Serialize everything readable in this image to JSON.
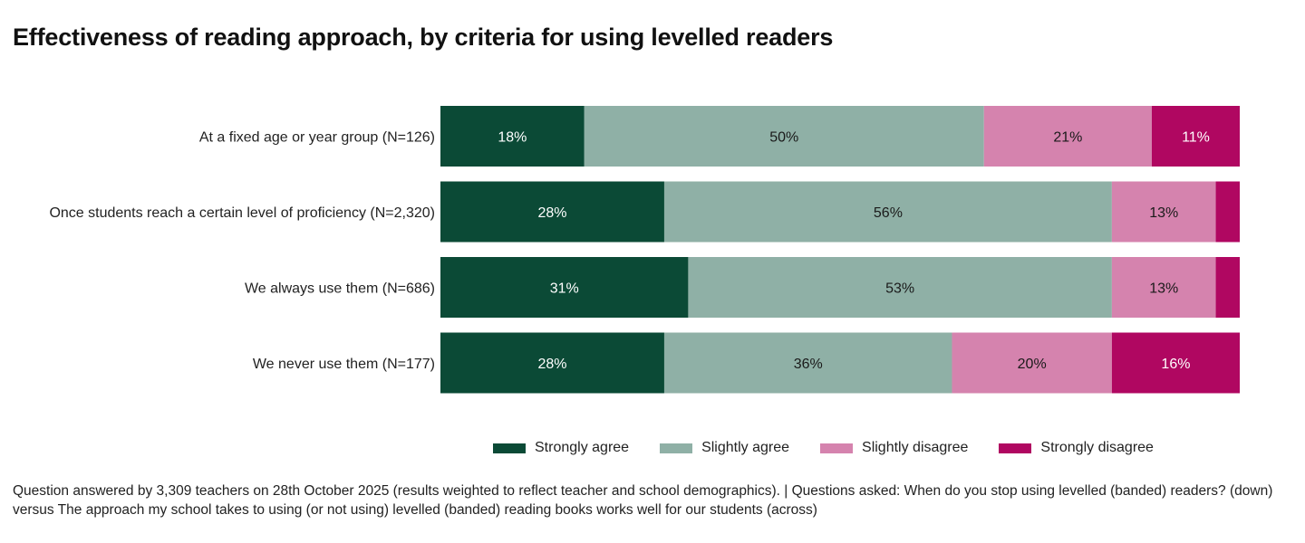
{
  "chart_data": {
    "type": "bar",
    "orientation": "horizontal",
    "stacked": true,
    "title": "Effectiveness of reading approach, by criteria for using levelled readers",
    "categories": [
      "At a fixed age or year group (N=126)",
      "Once students reach a certain level of proficiency (N=2,320)",
      "We always use them (N=686)",
      "We never use them (N=177)"
    ],
    "series": [
      {
        "name": "Strongly agree",
        "color": "#0b4a36",
        "label_color": "#ffffff",
        "values": [
          18,
          28,
          31,
          28
        ]
      },
      {
        "name": "Slightly agree",
        "color": "#8fb0a6",
        "label_color": "#1a1a1a",
        "values": [
          50,
          56,
          53,
          36
        ]
      },
      {
        "name": "Slightly disagree",
        "color": "#d583ae",
        "label_color": "#1a1a1a",
        "values": [
          21,
          13,
          13,
          20
        ]
      },
      {
        "name": "Strongly disagree",
        "color": "#b00761",
        "label_color": "#ffffff",
        "values": [
          11,
          3,
          3,
          16
        ]
      }
    ],
    "xlim": [
      0,
      100
    ],
    "value_suffix": "%",
    "legend_position": "bottom",
    "grid": false
  },
  "footnote": "Question answered by 3,309 teachers on 28th October 2025 (results weighted to reflect teacher and school demographics). | Questions asked: When do you stop using levelled (banded) readers? (down) versus The approach my school takes to using (or not using) levelled (banded) reading books works well for our students (across)"
}
